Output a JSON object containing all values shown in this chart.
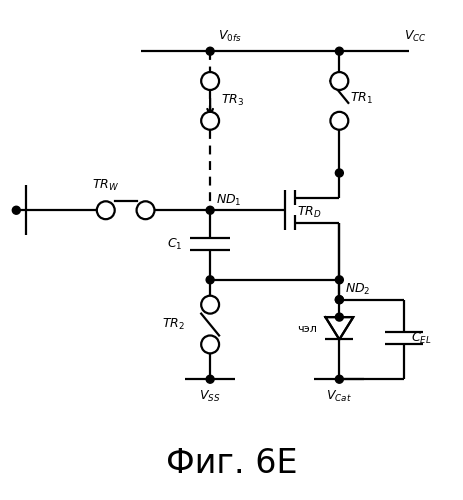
{
  "title": "Фиг. 6Е",
  "title_fontsize": 24,
  "background_color": "#ffffff",
  "line_color": "#000000",
  "figsize": [
    4.63,
    5.0
  ],
  "dpi": 100
}
